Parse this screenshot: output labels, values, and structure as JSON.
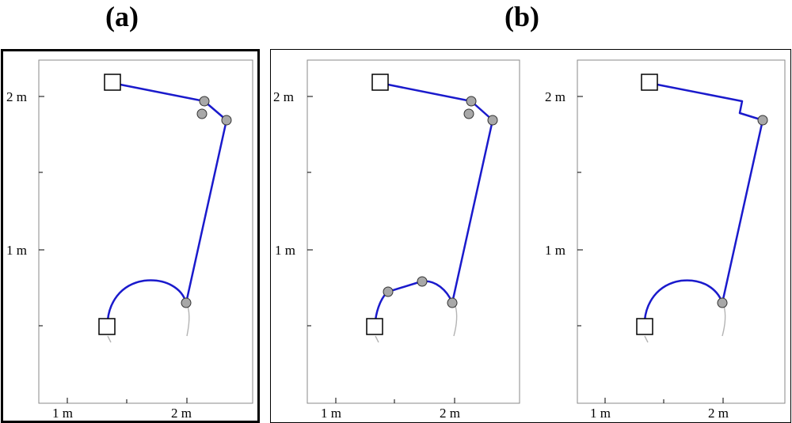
{
  "labels": {
    "a": "(a)",
    "b": "(b)"
  },
  "axis": {
    "x_ticks": [
      "1 m",
      "2 m"
    ],
    "y_ticks": [
      "2 m",
      "1 m"
    ]
  },
  "colors": {
    "path": "#1a1acc",
    "vertex_fill": "#a8a8a8",
    "tail": "#b4b4b4",
    "marker_fill": "#ffffff"
  },
  "figure_a": {
    "title": "(a)"
  },
  "figure_b": {
    "title": "(b)"
  }
}
